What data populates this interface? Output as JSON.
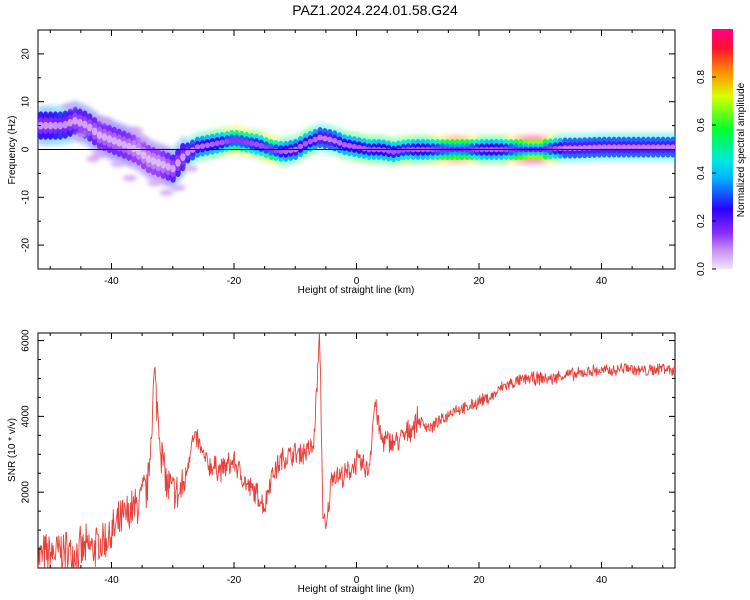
{
  "title": "PAZ1.2024.224.01.58.G24",
  "colors": {
    "snr_line": "#e8403a",
    "zero_line": "#000000",
    "heat_stops": [
      "#f7e7fb",
      "#d6a2ee",
      "#a44bff",
      "#6600ff",
      "#0000ff",
      "#00a0ff",
      "#00e5e5",
      "#00ff00",
      "#ffff00",
      "#ff8000",
      "#ff0040",
      "#ff0090"
    ]
  },
  "chart_data": [
    {
      "type": "heatmap",
      "xlabel": "Height of straight line (km)",
      "ylabel": "Frequency (Hz)",
      "xlim": [
        -52,
        52
      ],
      "ylim": [
        -25,
        25
      ],
      "xticks": [
        -40,
        -20,
        0,
        20,
        40
      ],
      "yticks": [
        -20,
        -10,
        0,
        10,
        20
      ],
      "colorbar": {
        "label": "Normalized spectral amplitude",
        "range": [
          0,
          1
        ],
        "ticks": [
          0.0,
          0.2,
          0.4,
          0.6,
          0.8
        ]
      },
      "ridge": {
        "x": [
          -50,
          -48,
          -46,
          -44,
          -42,
          -40,
          -38,
          -36,
          -34,
          -32,
          -30,
          -28,
          -26,
          -24,
          -22,
          -20,
          -18,
          -16,
          -14,
          -12,
          -10,
          -8,
          -6,
          -4,
          -2,
          0,
          2,
          4,
          6,
          8,
          10,
          12,
          14,
          16,
          18,
          20,
          22,
          24,
          26,
          28,
          30,
          32,
          34,
          36,
          38,
          40,
          42,
          44,
          46,
          48,
          50,
          52
        ],
        "freq": [
          5,
          5,
          6,
          5,
          3,
          2,
          1,
          0,
          -2,
          -3,
          -4,
          -1,
          0.5,
          1,
          1.5,
          2,
          1.5,
          1,
          0,
          -0.5,
          0,
          1.5,
          2.5,
          2,
          1,
          0.5,
          0,
          0,
          -0.5,
          0,
          0,
          0,
          0,
          0,
          0,
          0,
          0,
          0,
          0,
          0,
          0,
          0.2,
          0.3,
          0.3,
          0.4,
          0.5,
          0.5,
          0.5,
          0.5,
          0.5,
          0.5,
          0.5
        ],
        "amplitude": [
          0.35,
          0.4,
          0.3,
          0.3,
          0.25,
          0.25,
          0.25,
          0.2,
          0.2,
          0.2,
          0.3,
          0.35,
          0.5,
          0.55,
          0.6,
          0.75,
          0.7,
          0.6,
          0.75,
          0.55,
          0.5,
          0.6,
          0.45,
          0.45,
          0.55,
          0.55,
          0.6,
          0.55,
          0.6,
          0.65,
          0.55,
          0.6,
          0.75,
          0.85,
          0.8,
          0.6,
          0.55,
          0.6,
          0.8,
          0.95,
          0.95,
          0.65,
          0.45,
          0.45,
          0.45,
          0.45,
          0.45,
          0.45,
          0.45,
          0.45,
          0.45,
          0.45
        ]
      },
      "grid": false
    },
    {
      "type": "line",
      "xlabel": "Height of straight line (km)",
      "ylabel": "SNR (10 * v/v)",
      "xlim": [
        -52,
        52
      ],
      "ylim": [
        0,
        6200
      ],
      "xticks": [
        -40,
        -20,
        0,
        20,
        40
      ],
      "yticks": [
        2000,
        4000,
        6000
      ],
      "series": [
        {
          "x": [
            -52,
            -50,
            -48,
            -46,
            -44,
            -42,
            -40,
            -38,
            -36,
            -34,
            -33,
            -32,
            -31,
            -30,
            -29,
            -28,
            -27,
            -26,
            -25,
            -24,
            -22,
            -20,
            -18,
            -16,
            -15,
            -14,
            -12,
            -10,
            -8,
            -7,
            -6,
            -5.5,
            -5,
            -4,
            -2,
            0,
            2,
            3,
            4,
            6,
            8,
            10,
            12,
            14,
            16,
            18,
            20,
            22,
            24,
            26,
            28,
            30,
            32,
            34,
            36,
            38,
            40,
            42,
            44,
            46,
            48,
            50,
            52
          ],
          "values": [
            300,
            350,
            450,
            380,
            500,
            600,
            900,
            1300,
            1600,
            2200,
            5100,
            3300,
            2200,
            2000,
            1900,
            2300,
            3300,
            3400,
            2900,
            2700,
            2600,
            2800,
            2200,
            1900,
            1600,
            2400,
            2900,
            3000,
            3100,
            3200,
            6200,
            1500,
            900,
            2500,
            2400,
            2800,
            2600,
            4400,
            3400,
            3300,
            3500,
            3900,
            3700,
            3900,
            4200,
            4200,
            4400,
            4500,
            4800,
            4900,
            5000,
            5000,
            5000,
            5100,
            5100,
            5200,
            5200,
            5200,
            5300,
            5200,
            5200,
            5300,
            5200
          ]
        }
      ],
      "grid": false
    }
  ]
}
